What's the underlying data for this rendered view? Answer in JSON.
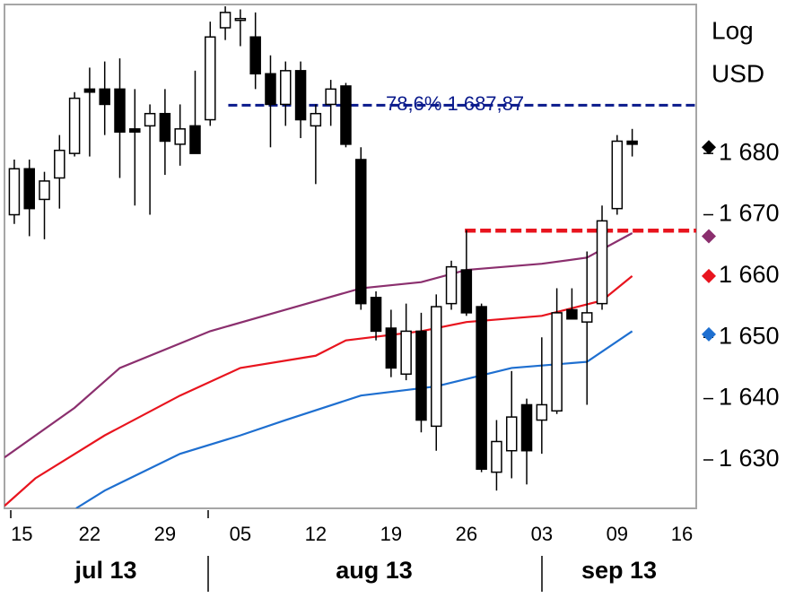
{
  "chart_data": {
    "type": "candlestick",
    "y_label_lines": [
      "Log",
      "USD"
    ],
    "x": [
      0,
      1,
      2,
      3,
      4,
      5,
      6,
      7,
      8,
      9,
      10,
      11,
      12,
      13,
      14,
      15,
      16,
      17,
      18,
      19,
      20,
      21,
      22,
      23,
      24,
      25,
      26,
      27,
      28,
      29,
      30,
      31,
      32,
      33,
      34,
      35,
      36,
      37,
      38,
      39,
      40,
      41
    ],
    "open": [
      1670,
      1677.5,
      1672.5,
      1676,
      1680,
      1690.5,
      1690.5,
      1690.5,
      1684,
      1684.5,
      1686.5,
      1681.5,
      1684.5,
      1685.5,
      1700.5,
      1702,
      1699,
      1693,
      1688,
      1693.5,
      1684.5,
      1688,
      1691,
      1679,
      1656.5,
      1651.5,
      1644,
      1651,
      1635.5,
      1655.5,
      1661,
      1655,
      1628,
      1631.5,
      1639,
      1636.5,
      1638,
      1654.5,
      1652.5,
      1655.5,
      1671,
      1682
    ],
    "high": [
      1679,
      1679,
      1677,
      1683,
      1690,
      1694,
      1695,
      1695.5,
      1690.5,
      1688,
      1690.5,
      1688,
      1693.5,
      1701.5,
      1704,
      1703.5,
      1703,
      1696,
      1695,
      1695,
      1688,
      1692,
      1691.5,
      1681,
      1657.5,
      1654.5,
      1655.5,
      1654,
      1657,
      1662.5,
      1667.5,
      1655.5,
      1636.5,
      1644.5,
      1640,
      1650,
      1658,
      1658,
      1664,
      1671.5,
      1683,
      1684
    ],
    "low": [
      1668.5,
      1666.5,
      1666,
      1671,
      1679.5,
      1679.5,
      1683,
      1676,
      1671.5,
      1670,
      1676.5,
      1678,
      1680,
      1684.5,
      1698.5,
      1697.5,
      1690.5,
      1681,
      1684.5,
      1682.5,
      1675,
      1684.5,
      1681,
      1654.5,
      1649.5,
      1643.5,
      1643,
      1634.5,
      1631.5,
      1654.5,
      1653.5,
      1628,
      1625,
      1627,
      1626,
      1631,
      1637.5,
      1653,
      1639,
      1654.5,
      1670,
      1679.5
    ],
    "close": [
      1677.5,
      1671,
      1675.5,
      1680.5,
      1689,
      1690,
      1688,
      1683.5,
      1683.5,
      1686.5,
      1682,
      1684,
      1680,
      1699,
      1703,
      1702,
      1693,
      1688,
      1693.5,
      1685.5,
      1686.5,
      1690.5,
      1681.5,
      1655.5,
      1651,
      1645,
      1651,
      1636.5,
      1655,
      1661.5,
      1654,
      1628.5,
      1633,
      1637,
      1631.5,
      1639,
      1654,
      1653,
      1654,
      1669,
      1682,
      1681.5
    ],
    "series": [
      {
        "color": "#8b2f6e",
        "x": [
          -0.65,
          4,
          7,
          13,
          18,
          23,
          27,
          30,
          35,
          38,
          41
        ],
        "values": [
          1630.4,
          1638.5,
          1645,
          1651,
          1654.5,
          1658,
          1659,
          1661,
          1662,
          1663,
          1667
        ]
      },
      {
        "color": "#e8141e",
        "x": [
          -0.65,
          1.4,
          6,
          11,
          15,
          20,
          22,
          27,
          30,
          35,
          39,
          41
        ],
        "values": [
          1622.5,
          1627,
          1634,
          1640.5,
          1645,
          1647,
          1649.5,
          1651,
          1652.5,
          1653.5,
          1656,
          1660
        ]
      },
      {
        "color": "#1e6fd0",
        "x": [
          4.1,
          6,
          11,
          15,
          18,
          23,
          28,
          33,
          38,
          41
        ],
        "values": [
          1622.1,
          1625,
          1631,
          1634,
          1636.5,
          1640.5,
          1642,
          1645,
          1646,
          1651
        ]
      }
    ],
    "levels": [
      {
        "value": 1687.87,
        "label": "78,6% 1 687,87",
        "color": "#0a1a8c",
        "x_start": 14.2
      },
      {
        "value": 1667.4,
        "color": "#e8141e",
        "x_start": 29.9
      }
    ],
    "markers": [
      {
        "value": 1681,
        "color": "#000000"
      },
      {
        "value": 1666.5,
        "color": "#8b2f6e"
      },
      {
        "value": 1660,
        "color": "#e8141e"
      },
      {
        "value": 1650.5,
        "color": "#1e6fd0"
      }
    ],
    "xlim": [
      -0.65,
      45.25
    ],
    "ylim": [
      1622.1,
      1704.3
    ],
    "yticks": [
      {
        "value": 1630,
        "label": "1 630"
      },
      {
        "value": 1640,
        "label": "1 640"
      },
      {
        "value": 1650,
        "label": "1 650"
      },
      {
        "value": 1660,
        "label": "1 660"
      },
      {
        "value": 1670,
        "label": "1 670"
      },
      {
        "value": 1680,
        "label": "1 680"
      }
    ],
    "xticks": [
      {
        "value": 0.5,
        "label": "15"
      },
      {
        "value": 5,
        "label": "22"
      },
      {
        "value": 10,
        "label": "29"
      },
      {
        "value": 15,
        "label": "05"
      },
      {
        "value": 20,
        "label": "12"
      },
      {
        "value": 25,
        "label": "19"
      },
      {
        "value": 30,
        "label": "26"
      },
      {
        "value": 35,
        "label": "03"
      },
      {
        "value": 40,
        "label": "09"
      },
      {
        "value": 44.3,
        "label": "16"
      }
    ],
    "months": [
      "jul 13",
      "aug 13",
      "sep 13"
    ]
  }
}
